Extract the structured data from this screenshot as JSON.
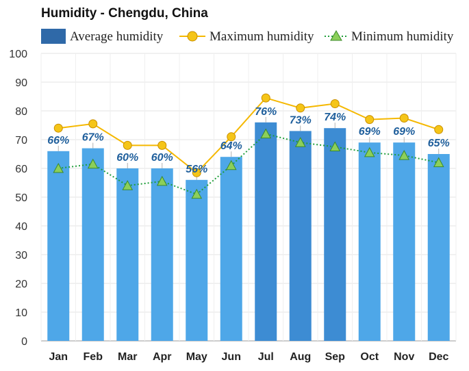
{
  "chart_data": {
    "type": "bar",
    "title": "Humidity - Chengdu, China",
    "categories": [
      "Jan",
      "Feb",
      "Mar",
      "Apr",
      "May",
      "Jun",
      "Jul",
      "Aug",
      "Sep",
      "Oct",
      "Nov",
      "Dec"
    ],
    "series": [
      {
        "name": "Average humidity",
        "kind": "bar",
        "values": [
          66,
          67,
          60,
          60,
          56,
          64,
          76,
          73,
          74,
          69,
          69,
          65
        ],
        "color": "#4da3e4"
      },
      {
        "name": "Maximum humidity",
        "kind": "line",
        "values": [
          74,
          75.5,
          68,
          68,
          58.5,
          71,
          84.5,
          81,
          82.5,
          77,
          77.5,
          73.5
        ],
        "color": "#f5b800"
      },
      {
        "name": "Minimum humidity",
        "kind": "line-dotted",
        "values": [
          60,
          61.5,
          54,
          55.5,
          51,
          61,
          72,
          69,
          67.5,
          65.5,
          64.5,
          62
        ],
        "color": "#1f9e3a"
      }
    ],
    "data_labels": [
      "66%",
      "67%",
      "60%",
      "60%",
      "56%",
      "64%",
      "76%",
      "73%",
      "74%",
      "69%",
      "69%",
      "65%"
    ],
    "yticks": [
      "0",
      "10",
      "20",
      "30",
      "40",
      "50",
      "60",
      "70",
      "80",
      "90",
      "100"
    ],
    "ylim": [
      0,
      100
    ],
    "xlabel": "",
    "ylabel": "",
    "grid": true,
    "legend": "top"
  }
}
